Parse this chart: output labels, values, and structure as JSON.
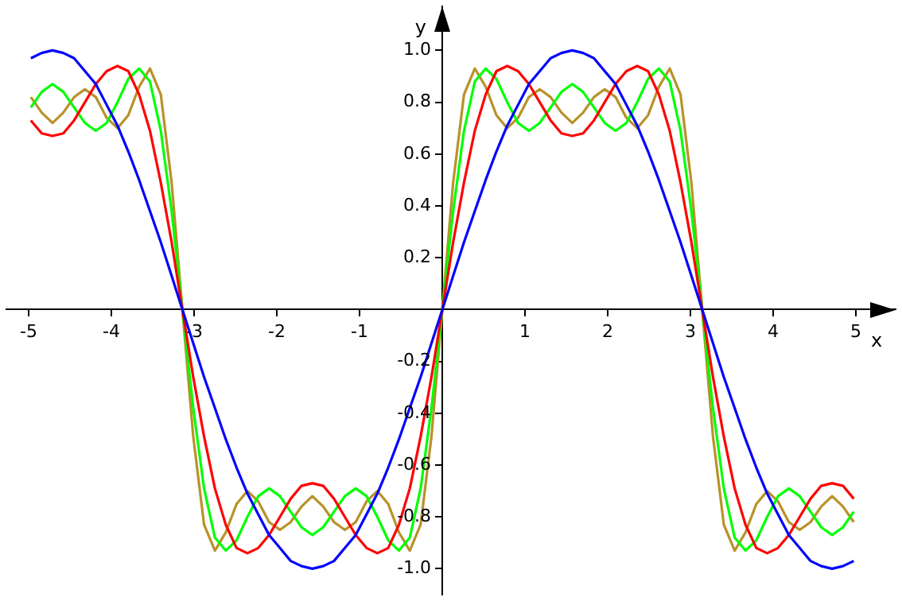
{
  "chart_data": {
    "type": "line",
    "xlabel": "x",
    "ylabel": "y",
    "x": [
      -4.974,
      -4.843,
      -4.712,
      -4.581,
      -4.451,
      -4.32,
      -4.189,
      -4.058,
      -3.927,
      -3.796,
      -3.665,
      -3.534,
      -3.403,
      -3.272,
      -3.142,
      -3.011,
      -2.88,
      -2.749,
      -2.618,
      -2.487,
      -2.356,
      -2.225,
      -2.094,
      -1.963,
      -1.833,
      -1.702,
      -1.571,
      -1.44,
      -1.309,
      -1.178,
      -1.047,
      -0.916,
      -0.785,
      -0.654,
      -0.524,
      -0.393,
      -0.262,
      -0.131,
      0,
      0.131,
      0.262,
      0.393,
      0.524,
      0.654,
      0.785,
      0.916,
      1.047,
      1.178,
      1.309,
      1.44,
      1.571,
      1.702,
      1.833,
      1.963,
      2.094,
      2.225,
      2.356,
      2.487,
      2.618,
      2.749,
      2.88,
      3.011,
      3.142,
      3.272,
      3.403,
      3.534,
      3.665,
      3.796,
      3.927,
      4.058,
      4.189,
      4.32,
      4.451,
      4.581,
      4.712,
      4.843,
      4.974
    ],
    "series": [
      {
        "color": "#0000ff",
        "values": [
          0.97,
          0.99,
          1,
          0.99,
          0.97,
          0.92,
          0.87,
          0.79,
          0.71,
          0.61,
          0.5,
          0.38,
          0.26,
          0.13,
          0,
          -0.13,
          -0.26,
          -0.38,
          -0.5,
          -0.61,
          -0.71,
          -0.79,
          -0.87,
          -0.92,
          -0.97,
          -0.99,
          -1,
          -0.99,
          -0.97,
          -0.92,
          -0.87,
          -0.79,
          -0.71,
          -0.61,
          -0.5,
          -0.38,
          -0.26,
          -0.13,
          0,
          0.13,
          0.26,
          0.38,
          0.5,
          0.61,
          0.71,
          0.79,
          0.87,
          0.92,
          0.97,
          0.99,
          1,
          0.99,
          0.97,
          0.92,
          0.87,
          0.79,
          0.71,
          0.61,
          0.5,
          0.38,
          0.26,
          0.13,
          0,
          -0.13,
          -0.26,
          -0.38,
          -0.5,
          -0.61,
          -0.71,
          -0.79,
          -0.87,
          -0.92,
          -0.97,
          -0.99,
          -1,
          -0.99,
          -0.97
        ]
      },
      {
        "color": "#ff0000",
        "values": [
          0.73,
          0.68,
          0.67,
          0.68,
          0.73,
          0.8,
          0.87,
          0.92,
          0.94,
          0.92,
          0.83,
          0.69,
          0.49,
          0.26,
          0,
          -0.26,
          -0.49,
          -0.69,
          -0.83,
          -0.92,
          -0.94,
          -0.92,
          -0.87,
          -0.8,
          -0.73,
          -0.68,
          -0.67,
          -0.68,
          -0.73,
          -0.8,
          -0.87,
          -0.92,
          -0.94,
          -0.92,
          -0.83,
          -0.69,
          -0.49,
          -0.26,
          0,
          0.26,
          0.49,
          0.69,
          0.83,
          0.92,
          0.94,
          0.92,
          0.87,
          0.8,
          0.73,
          0.68,
          0.67,
          0.68,
          0.73,
          0.8,
          0.87,
          0.92,
          0.94,
          0.92,
          0.83,
          0.69,
          0.49,
          0.26,
          0,
          -0.26,
          -0.49,
          -0.69,
          -0.83,
          -0.92,
          -0.94,
          -0.92,
          -0.87,
          -0.8,
          -0.73,
          -0.68,
          -0.67,
          -0.68,
          -0.73
        ]
      },
      {
        "color": "#00ff00",
        "values": [
          0.78,
          0.84,
          0.87,
          0.84,
          0.78,
          0.72,
          0.69,
          0.72,
          0.8,
          0.89,
          0.93,
          0.88,
          0.69,
          0.38,
          0,
          -0.38,
          -0.69,
          -0.88,
          -0.93,
          -0.89,
          -0.8,
          -0.72,
          -0.69,
          -0.72,
          -0.78,
          -0.84,
          -0.87,
          -0.84,
          -0.78,
          -0.72,
          -0.69,
          -0.72,
          -0.8,
          -0.89,
          -0.93,
          -0.88,
          -0.69,
          -0.38,
          0,
          0.38,
          0.69,
          0.88,
          0.93,
          0.89,
          0.8,
          0.72,
          0.69,
          0.72,
          0.78,
          0.84,
          0.87,
          0.84,
          0.78,
          0.72,
          0.69,
          0.72,
          0.8,
          0.89,
          0.93,
          0.88,
          0.69,
          0.38,
          0,
          -0.38,
          -0.69,
          -0.88,
          -0.93,
          -0.89,
          -0.8,
          -0.72,
          -0.69,
          -0.72,
          -0.78,
          -0.84,
          -0.87,
          -0.84,
          -0.78
        ]
      },
      {
        "color": "#b8922a",
        "values": [
          0.82,
          0.76,
          0.72,
          0.76,
          0.82,
          0.85,
          0.82,
          0.74,
          0.7,
          0.75,
          0.86,
          0.93,
          0.83,
          0.49,
          0,
          -0.49,
          -0.83,
          -0.93,
          -0.86,
          -0.75,
          -0.7,
          -0.74,
          -0.82,
          -0.85,
          -0.82,
          -0.76,
          -0.72,
          -0.76,
          -0.82,
          -0.85,
          -0.82,
          -0.74,
          -0.7,
          -0.75,
          -0.86,
          -0.93,
          -0.83,
          -0.49,
          0,
          0.49,
          0.83,
          0.93,
          0.86,
          0.75,
          0.7,
          0.74,
          0.82,
          0.85,
          0.82,
          0.76,
          0.72,
          0.76,
          0.82,
          0.85,
          0.82,
          0.74,
          0.7,
          0.75,
          0.86,
          0.93,
          0.83,
          0.49,
          0,
          -0.49,
          -0.83,
          -0.93,
          -0.86,
          -0.75,
          -0.7,
          -0.74,
          -0.82,
          -0.85,
          -0.82,
          -0.76,
          -0.72,
          -0.76,
          -0.82
        ]
      }
    ],
    "xlim": [
      -5.27,
      5.48
    ],
    "ylim": [
      -1.1,
      1.17
    ],
    "xticks": [
      -5,
      -4,
      -3,
      -2,
      -1,
      1,
      2,
      3,
      4,
      5
    ],
    "yticks": [
      {
        "value": -1,
        "label": "-1.0"
      },
      {
        "value": -0.8,
        "label": "-0.8"
      },
      {
        "value": -0.6,
        "label": "-0.6"
      },
      -0.4,
      -0.2,
      0.2,
      0.4,
      0.6,
      0.8,
      {
        "value": 1,
        "label": "1.0"
      }
    ],
    "grid": false,
    "legend": false,
    "marker": "none",
    "line_style": "solid"
  }
}
